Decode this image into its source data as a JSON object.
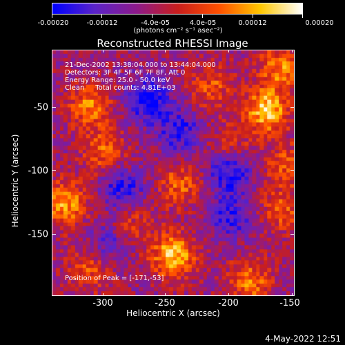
{
  "colorbar": {
    "labels": [
      "-0.00020",
      "-0.00012",
      "-4.0e-05",
      "4.0e-05",
      "0.00012",
      "0.00020"
    ],
    "units": "(photons cm⁻² s⁻¹ asec⁻²)",
    "range": [
      -0.0002,
      0.0002
    ],
    "colors": [
      "#0000ff",
      "#5a23c8",
      "#8c1a8c",
      "#c81e1e",
      "#ff5000",
      "#ffc800",
      "#ffffff"
    ]
  },
  "title": "Reconstructed RHESSI Image",
  "info": {
    "time_range": "21-Dec-2002 13:38:04.000 to 13:44:04.000",
    "detectors": "Detectors: 3F 4F 5F 6F 7F 8F, Att 0",
    "energy": "Energy Range: 25.0 - 50.0 keV",
    "method_counts": "Clean     Total counts: 4.81E+03",
    "peak": "Position of Peak = [-171,-53]"
  },
  "axes": {
    "x_label": "Heliocentric X (arcsec)",
    "y_label": "Heliocentric Y (arcsec)",
    "x_ticks": [
      "-300",
      "-250",
      "-200",
      "-150"
    ],
    "y_ticks": [
      "-50",
      "-100",
      "-150"
    ]
  },
  "timestamp": "4-May-2022 12:51",
  "chart_data": {
    "type": "heatmap",
    "title": "Reconstructed RHESSI Image",
    "xlabel": "Heliocentric X (arcsec)",
    "ylabel": "Heliocentric Y (arcsec)",
    "xlim": [
      -340,
      -150
    ],
    "ylim": [
      -195,
      -7
    ],
    "x_ticks": [
      -300,
      -250,
      -200,
      -150
    ],
    "y_ticks": [
      -50,
      -100,
      -150
    ],
    "colorbar_range": [
      -0.0002,
      0.0002
    ],
    "peak_position": [
      -171,
      -53
    ],
    "bright_sources": [
      {
        "x": -171,
        "y": -53,
        "value": 0.0002
      },
      {
        "x": -245,
        "y": -165,
        "value": 0.00019
      },
      {
        "x": -330,
        "y": -125,
        "value": 0.00016
      },
      {
        "x": -310,
        "y": -50,
        "value": 0.00014
      },
      {
        "x": -160,
        "y": -20,
        "value": 0.00014
      },
      {
        "x": -185,
        "y": -185,
        "value": 0.00013
      },
      {
        "x": -240,
        "y": -110,
        "value": 0.00011
      },
      {
        "x": -300,
        "y": -85,
        "value": 0.00011
      },
      {
        "x": -160,
        "y": -130,
        "value": 0.0001
      },
      {
        "x": -215,
        "y": -35,
        "value": 0.0001
      },
      {
        "x": -310,
        "y": -175,
        "value": 0.0001
      },
      {
        "x": -280,
        "y": -140,
        "value": 9e-05
      },
      {
        "x": -200,
        "y": -80,
        "value": 8e-05
      },
      {
        "x": -155,
        "y": -95,
        "value": 0.0001
      }
    ],
    "dark_regions": [
      {
        "x": -265,
        "y": -45,
        "value": -0.00016
      },
      {
        "x": -200,
        "y": -100,
        "value": -0.00015
      },
      {
        "x": -285,
        "y": -115,
        "value": -0.00013
      },
      {
        "x": -240,
        "y": -70,
        "value": -0.00012
      },
      {
        "x": -200,
        "y": -135,
        "value": -0.00011
      },
      {
        "x": -295,
        "y": -155,
        "value": -0.0001
      }
    ]
  }
}
